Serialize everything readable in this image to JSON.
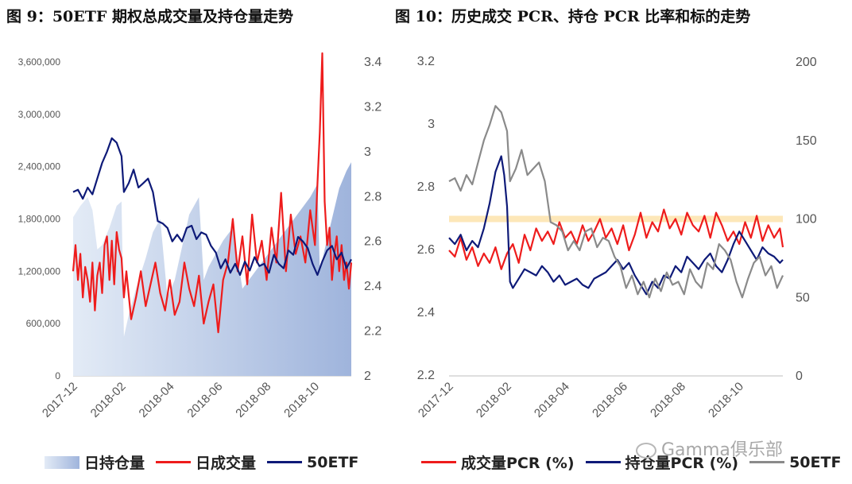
{
  "charts": {
    "left_title": "图 9：50ETF 期权总成交量及持仓量走势",
    "right_title": "图 10：历史成交 PCR、持仓 PCR 比率和标的走势"
  },
  "colors": {
    "red": "#ee1c1c",
    "navy": "#0e1a78",
    "gray": "#8a8a8a",
    "area_light": "#e3ebf6",
    "area_dark": "#9fb4dc",
    "band": "#fde7b8"
  },
  "watermark": "Gamma俱乐部",
  "chart_data": [
    {
      "type": "line",
      "title": "图 9：50ETF 期权总成交量及持仓量走势",
      "x_ticks": [
        "2017-12",
        "2018-02",
        "2018-04",
        "2018-06",
        "2018-08",
        "2018-10"
      ],
      "y_left_ticks": [
        "0",
        "600,000",
        "1,200,000",
        "1,800,000",
        "2,400,000",
        "3,000,000",
        "3,600,000"
      ],
      "y_left_range": [
        0,
        3600000
      ],
      "y_right_ticks": [
        "2",
        "2.2",
        "2.4",
        "2.6",
        "2.8",
        "3",
        "3.2",
        "3.4"
      ],
      "y_right_range": [
        2,
        3.4
      ],
      "x_range": [
        0,
        11.5
      ],
      "legend_position": "bottom",
      "series": [
        {
          "name": "日持仓量",
          "kind": "area",
          "axis": "left",
          "x": [
            0,
            0.3,
            0.6,
            0.8,
            1.0,
            1.2,
            1.5,
            1.8,
            2.0,
            2.1,
            2.3,
            2.6,
            3.0,
            3.3,
            3.6,
            3.9,
            4.2,
            4.4,
            4.6,
            4.8,
            5.0,
            5.2,
            5.4,
            5.6,
            5.9,
            6.2,
            6.6,
            7.0,
            7.4,
            7.8,
            8.2,
            8.6,
            9.0,
            9.4,
            9.8,
            10.1,
            10.2,
            10.4,
            10.7,
            11.0,
            11.3,
            11.5
          ],
          "values": [
            1820000,
            1950000,
            2050000,
            1900000,
            1450000,
            1500000,
            1700000,
            1950000,
            2000000,
            450000,
            700000,
            1000000,
            1350000,
            1650000,
            1800000,
            900000,
            1100000,
            1350000,
            1600000,
            1850000,
            1950000,
            2050000,
            1100000,
            1250000,
            1400000,
            1550000,
            1700000,
            1000000,
            1150000,
            1300000,
            1450000,
            1600000,
            1750000,
            1900000,
            2050000,
            2200000,
            1200000,
            1450000,
            1800000,
            2150000,
            2350000,
            2450000
          ]
        },
        {
          "name": "日成交量",
          "kind": "line",
          "axis": "left",
          "x": [
            0,
            0.1,
            0.2,
            0.3,
            0.4,
            0.5,
            0.6,
            0.7,
            0.8,
            0.9,
            1.0,
            1.1,
            1.2,
            1.3,
            1.4,
            1.5,
            1.6,
            1.7,
            1.8,
            1.9,
            2.0,
            2.1,
            2.2,
            2.4,
            2.6,
            2.8,
            3.0,
            3.2,
            3.4,
            3.6,
            3.8,
            4.0,
            4.2,
            4.4,
            4.6,
            4.8,
            5.0,
            5.2,
            5.4,
            5.6,
            5.8,
            6.0,
            6.2,
            6.4,
            6.6,
            6.8,
            7.0,
            7.2,
            7.4,
            7.6,
            7.8,
            8.0,
            8.2,
            8.4,
            8.6,
            8.8,
            9.0,
            9.2,
            9.4,
            9.6,
            9.8,
            10.0,
            10.1,
            10.2,
            10.3,
            10.4,
            10.5,
            10.6,
            10.7,
            10.8,
            10.9,
            11.0,
            11.1,
            11.2,
            11.3,
            11.4,
            11.5
          ],
          "values": [
            1200000,
            1500000,
            1100000,
            1400000,
            900000,
            1250000,
            1100000,
            850000,
            1300000,
            750000,
            1150000,
            1300000,
            950000,
            1500000,
            1600000,
            1100000,
            1550000,
            1050000,
            1650000,
            1450000,
            1350000,
            900000,
            1200000,
            650000,
            900000,
            1200000,
            800000,
            1050000,
            1300000,
            950000,
            750000,
            1100000,
            700000,
            850000,
            1300000,
            1000000,
            800000,
            1150000,
            600000,
            850000,
            1050000,
            500000,
            1100000,
            1300000,
            1800000,
            1200000,
            1600000,
            1050000,
            1850000,
            1300000,
            1550000,
            1100000,
            1700000,
            1300000,
            2100000,
            1200000,
            1850000,
            1400000,
            1600000,
            1300000,
            1900000,
            1500000,
            2200000,
            2800000,
            3700000,
            2000000,
            1500000,
            1700000,
            1100000,
            1400000,
            1600000,
            1200000,
            1500000,
            1100000,
            1300000,
            1000000,
            1300000
          ]
        },
        {
          "name": "50ETF",
          "kind": "line",
          "axis": "right",
          "x": [
            0,
            0.2,
            0.4,
            0.6,
            0.8,
            1.0,
            1.2,
            1.4,
            1.6,
            1.8,
            2.0,
            2.1,
            2.3,
            2.5,
            2.7,
            2.9,
            3.1,
            3.3,
            3.5,
            3.7,
            3.9,
            4.1,
            4.3,
            4.5,
            4.7,
            4.9,
            5.1,
            5.3,
            5.5,
            5.7,
            5.9,
            6.1,
            6.3,
            6.5,
            6.7,
            6.9,
            7.1,
            7.3,
            7.5,
            7.7,
            7.9,
            8.1,
            8.3,
            8.5,
            8.7,
            8.9,
            9.1,
            9.3,
            9.5,
            9.7,
            9.9,
            10.1,
            10.3,
            10.5,
            10.7,
            10.9,
            11.1,
            11.3,
            11.5
          ],
          "values": [
            2.82,
            2.83,
            2.79,
            2.84,
            2.81,
            2.88,
            2.95,
            3.0,
            3.06,
            3.04,
            2.98,
            2.82,
            2.86,
            2.92,
            2.84,
            2.86,
            2.88,
            2.82,
            2.69,
            2.68,
            2.66,
            2.6,
            2.63,
            2.6,
            2.66,
            2.67,
            2.61,
            2.64,
            2.63,
            2.58,
            2.55,
            2.48,
            2.52,
            2.46,
            2.5,
            2.45,
            2.51,
            2.47,
            2.53,
            2.49,
            2.5,
            2.46,
            2.54,
            2.5,
            2.48,
            2.56,
            2.54,
            2.62,
            2.6,
            2.57,
            2.5,
            2.45,
            2.51,
            2.56,
            2.58,
            2.52,
            2.55,
            2.48,
            2.52
          ]
        }
      ]
    },
    {
      "type": "line",
      "title": "图 10：历史成交 PCR、持仓 PCR 比率和标的走势",
      "x_ticks": [
        "2017-12",
        "2018-02",
        "2018-04",
        "2018-06",
        "2018-08",
        "2018-10"
      ],
      "y_left_ticks": [
        "2.2",
        "2.4",
        "2.6",
        "2.8",
        "3",
        "3.2"
      ],
      "y_left_range": [
        2.2,
        3.2
      ],
      "y_right_ticks": [
        "0",
        "50",
        "100",
        "150",
        "200"
      ],
      "y_right_range": [
        0,
        200
      ],
      "x_range": [
        0,
        11.5
      ],
      "legend_position": "bottom",
      "reference_band_right_axis": 100,
      "series": [
        {
          "name": "成交量PCR (%)",
          "kind": "line",
          "axis": "right",
          "x": [
            0,
            0.2,
            0.4,
            0.6,
            0.8,
            1.0,
            1.2,
            1.4,
            1.6,
            1.8,
            2.0,
            2.2,
            2.4,
            2.6,
            2.8,
            3.0,
            3.2,
            3.4,
            3.6,
            3.8,
            4.0,
            4.2,
            4.4,
            4.6,
            4.8,
            5.0,
            5.2,
            5.4,
            5.6,
            5.8,
            6.0,
            6.2,
            6.4,
            6.6,
            6.8,
            7.0,
            7.2,
            7.4,
            7.6,
            7.8,
            8.0,
            8.2,
            8.4,
            8.6,
            8.8,
            9.0,
            9.2,
            9.4,
            9.6,
            9.8,
            10.0,
            10.2,
            10.4,
            10.6,
            10.8,
            11.0,
            11.2,
            11.4,
            11.5
          ],
          "values": [
            80,
            76,
            88,
            74,
            82,
            70,
            78,
            72,
            82,
            68,
            78,
            84,
            72,
            90,
            80,
            94,
            86,
            92,
            84,
            98,
            88,
            92,
            84,
            96,
            86,
            92,
            100,
            88,
            94,
            84,
            96,
            80,
            90,
            104,
            88,
            98,
            92,
            106,
            94,
            100,
            90,
            104,
            96,
            92,
            102,
            88,
            104,
            96,
            86,
            92,
            84,
            98,
            88,
            102,
            86,
            96,
            88,
            94,
            82
          ]
        },
        {
          "name": "持仓量PCR (%)",
          "kind": "line",
          "axis": "right",
          "x": [
            0,
            0.2,
            0.4,
            0.6,
            0.8,
            1.0,
            1.2,
            1.4,
            1.6,
            1.8,
            1.9,
            2.0,
            2.1,
            2.2,
            2.4,
            2.6,
            2.8,
            3.0,
            3.2,
            3.4,
            3.6,
            3.8,
            4.0,
            4.2,
            4.4,
            4.6,
            4.8,
            5.0,
            5.2,
            5.4,
            5.6,
            5.8,
            6.0,
            6.2,
            6.4,
            6.6,
            6.8,
            7.0,
            7.2,
            7.4,
            7.6,
            7.8,
            8.0,
            8.2,
            8.4,
            8.6,
            8.8,
            9.0,
            9.2,
            9.4,
            9.6,
            9.8,
            10.0,
            10.2,
            10.4,
            10.6,
            10.8,
            11.0,
            11.2,
            11.4,
            11.5
          ],
          "values": [
            88,
            84,
            90,
            80,
            86,
            82,
            94,
            110,
            130,
            140,
            128,
            108,
            60,
            56,
            62,
            68,
            66,
            64,
            70,
            66,
            60,
            64,
            58,
            60,
            62,
            58,
            56,
            62,
            64,
            66,
            70,
            74,
            68,
            72,
            64,
            58,
            52,
            60,
            56,
            64,
            62,
            70,
            66,
            76,
            72,
            68,
            74,
            78,
            70,
            66,
            74,
            84,
            92,
            86,
            80,
            74,
            82,
            78,
            76,
            72,
            74
          ]
        },
        {
          "name": "50ETF",
          "kind": "line",
          "axis": "left",
          "x": [
            0,
            0.2,
            0.4,
            0.6,
            0.8,
            1.0,
            1.2,
            1.4,
            1.6,
            1.8,
            2.0,
            2.1,
            2.3,
            2.5,
            2.7,
            2.9,
            3.1,
            3.3,
            3.5,
            3.7,
            3.9,
            4.1,
            4.3,
            4.5,
            4.7,
            4.9,
            5.1,
            5.3,
            5.5,
            5.7,
            5.9,
            6.1,
            6.3,
            6.5,
            6.7,
            6.9,
            7.1,
            7.3,
            7.5,
            7.7,
            7.9,
            8.1,
            8.3,
            8.5,
            8.7,
            8.9,
            9.1,
            9.3,
            9.5,
            9.7,
            9.9,
            10.1,
            10.3,
            10.5,
            10.7,
            10.9,
            11.1,
            11.3,
            11.5
          ],
          "values": [
            2.82,
            2.83,
            2.79,
            2.84,
            2.81,
            2.88,
            2.95,
            3.0,
            3.06,
            3.04,
            2.98,
            2.82,
            2.86,
            2.92,
            2.84,
            2.86,
            2.88,
            2.82,
            2.69,
            2.68,
            2.66,
            2.6,
            2.63,
            2.6,
            2.66,
            2.67,
            2.61,
            2.64,
            2.63,
            2.58,
            2.55,
            2.48,
            2.52,
            2.46,
            2.5,
            2.45,
            2.51,
            2.47,
            2.53,
            2.49,
            2.5,
            2.46,
            2.54,
            2.5,
            2.48,
            2.56,
            2.54,
            2.62,
            2.6,
            2.57,
            2.5,
            2.45,
            2.51,
            2.56,
            2.58,
            2.52,
            2.55,
            2.48,
            2.52
          ]
        }
      ]
    }
  ]
}
